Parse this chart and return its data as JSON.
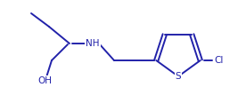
{
  "background_color": "#ffffff",
  "line_color": "#2222aa",
  "text_color": "#2222aa",
  "label_NH": "NH",
  "label_OH": "OH",
  "label_S": "S",
  "label_Cl": "Cl",
  "figsize": [
    2.67,
    1.25
  ],
  "dpi": 100,
  "bond_lw": 1.4,
  "font_size": 7.5
}
